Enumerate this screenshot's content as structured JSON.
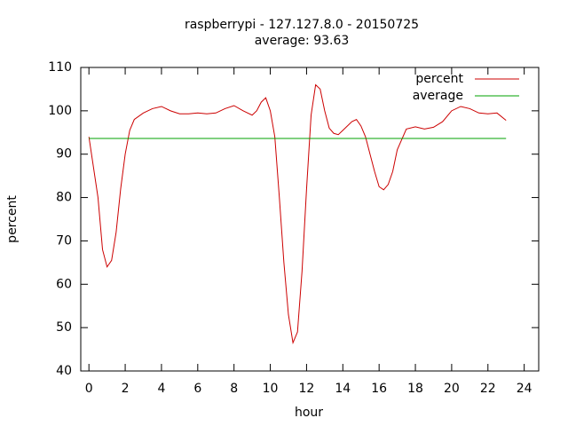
{
  "chart_data": {
    "type": "line",
    "title": "raspberrypi - 127.127.8.0 - 20150725",
    "subtitle": "average: 93.63",
    "xlabel": "hour",
    "ylabel": "percent",
    "xlim": [
      -0.45,
      24.8
    ],
    "ylim": [
      40,
      110
    ],
    "xticks": [
      0,
      2,
      4,
      6,
      8,
      10,
      12,
      14,
      16,
      18,
      20,
      22,
      24
    ],
    "yticks": [
      40,
      50,
      60,
      70,
      80,
      90,
      100,
      110
    ],
    "legend": "top-right",
    "series": [
      {
        "name": "percent",
        "color": "#cc0000",
        "x": [
          0,
          0.5,
          0.75,
          1,
          1.25,
          1.5,
          1.75,
          2,
          2.25,
          2.5,
          3,
          3.5,
          4,
          4.5,
          5,
          5.5,
          6,
          6.5,
          7,
          7.5,
          8,
          8.5,
          9,
          9.25,
          9.5,
          9.75,
          10,
          10.25,
          10.5,
          10.75,
          11,
          11.25,
          11.5,
          11.75,
          12,
          12.25,
          12.5,
          12.75,
          13,
          13.25,
          13.5,
          13.75,
          14,
          14.5,
          14.75,
          15,
          15.25,
          15.5,
          15.75,
          16,
          16.25,
          16.5,
          16.75,
          17,
          17.5,
          18,
          18.5,
          19,
          19.5,
          20,
          20.5,
          21,
          21.5,
          22,
          22.5,
          23
        ],
        "values": [
          94,
          80,
          68,
          64,
          65.5,
          72,
          82,
          90,
          95.5,
          98,
          99.5,
          100.5,
          101,
          100,
          99.3,
          99.3,
          99.5,
          99.3,
          99.5,
          100.5,
          101.2,
          100,
          99,
          100,
          102,
          103,
          100,
          94,
          80,
          65,
          53,
          46.5,
          49,
          63,
          82,
          99,
          106,
          105,
          100,
          96,
          94.8,
          94.5,
          95.5,
          97.5,
          98,
          96.5,
          94,
          90,
          86,
          82.5,
          81.8,
          83,
          86,
          91,
          95.8,
          96.3,
          95.8,
          96.2,
          97.5,
          100,
          101,
          100.5,
          99.5,
          99.3,
          99.5,
          97.8
        ]
      },
      {
        "name": "average",
        "color": "#00a000",
        "x": [
          0,
          23
        ],
        "values": [
          93.63,
          93.63
        ]
      }
    ]
  }
}
